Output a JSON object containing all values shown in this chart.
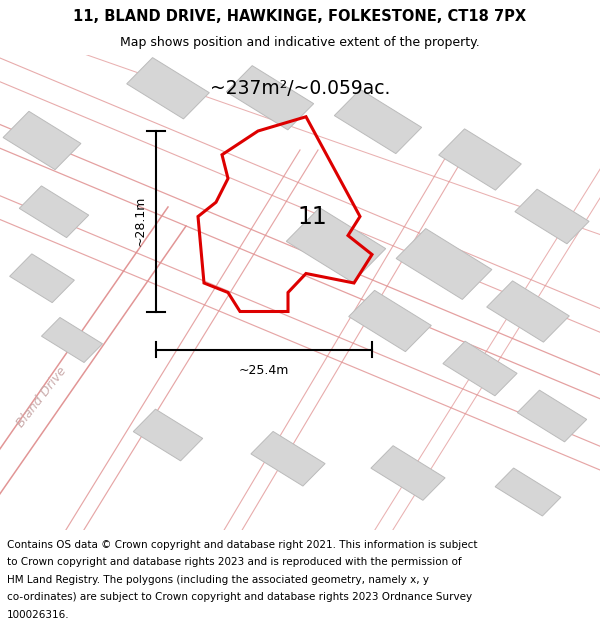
{
  "title_line1": "11, BLAND DRIVE, HAWKINGE, FOLKESTONE, CT18 7PX",
  "title_line2": "Map shows position and indicative extent of the property.",
  "area_text": "~237m²/~0.059ac.",
  "width_label": "~25.4m",
  "height_label": "~28.1m",
  "house_number": "11",
  "road_label": "Bland Drive",
  "footer_lines": [
    "Contains OS data © Crown copyright and database right 2021. This information is subject",
    "to Crown copyright and database rights 2023 and is reproduced with the permission of",
    "HM Land Registry. The polygons (including the associated geometry, namely x, y",
    "co-ordinates) are subject to Crown copyright and database rights 2023 Ordnance Survey",
    "100026316."
  ],
  "map_bg": "#f2efef",
  "building_color": "#d6d6d6",
  "building_edge": "#bbbbbb",
  "road_line_color": "#e8a0a0",
  "plot_color": "#dd0000",
  "title_bg": "#ffffff",
  "footer_bg": "#ffffff",
  "white": "#ffffff"
}
